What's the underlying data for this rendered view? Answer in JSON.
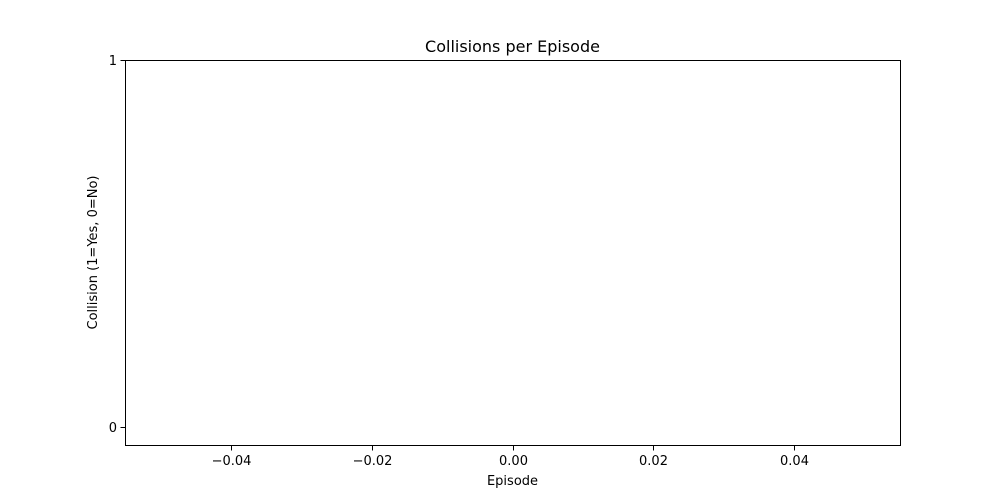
{
  "chart_data": {
    "type": "line",
    "title": "Collisions per Episode",
    "xlabel": "Episode",
    "ylabel": "Collision (1=Yes, 0=No)",
    "xlim": [
      -0.055,
      0.055
    ],
    "ylim": [
      -0.05,
      1.0
    ],
    "x_ticks": [
      -0.04,
      -0.02,
      0.0,
      0.02,
      0.04
    ],
    "x_tick_labels": [
      "−0.04",
      "−0.02",
      "0.00",
      "0.02",
      "0.04"
    ],
    "y_ticks": [
      0,
      1
    ],
    "y_tick_labels": [
      "0",
      "1"
    ],
    "grid": false,
    "series": [
      {
        "x": [],
        "y": []
      }
    ],
    "colors": {
      "axes": "#000000",
      "background": "#ffffff",
      "line": "#1f77b4"
    }
  }
}
